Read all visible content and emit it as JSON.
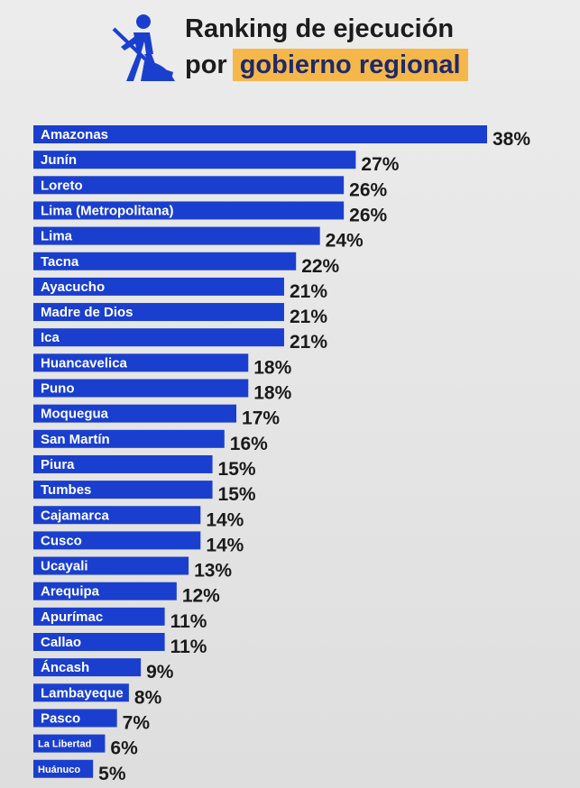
{
  "header": {
    "title_line1": "Ranking de ejecución",
    "title_line2_prefix": "por",
    "title_highlight": "gobierno regional",
    "icon": "construction-worker-icon"
  },
  "colors": {
    "bar": "#1a3fcf",
    "highlight": "#f6b74a",
    "icon": "#1a3fcf"
  },
  "chart_data": {
    "type": "bar",
    "orientation": "horizontal",
    "title": "Ranking de ejecución por gobierno regional",
    "categories": [
      "Amazonas",
      "Junín",
      "Loreto",
      "Lima (Metropolitana)",
      "Lima",
      "Tacna",
      "Ayacucho",
      "Madre de Dios",
      "Ica",
      "Huancavelica",
      "Puno",
      "Moquegua",
      "San Martín",
      "Piura",
      "Tumbes",
      "Cajamarca",
      "Cusco",
      "Ucayali",
      "Arequipa",
      "Apurímac",
      "Callao",
      "Áncash",
      "Lambayeque",
      "Pasco",
      "La Libertad",
      "Huánuco"
    ],
    "values": [
      38,
      27,
      26,
      26,
      24,
      22,
      21,
      21,
      21,
      18,
      18,
      17,
      16,
      15,
      15,
      14,
      14,
      13,
      12,
      11,
      11,
      9,
      8,
      7,
      6,
      5
    ],
    "value_labels": [
      "38%",
      "27%",
      "26%",
      "26%",
      "24%",
      "22%",
      "21%",
      "21%",
      "21%",
      "18%",
      "18%",
      "17%",
      "16%",
      "15%",
      "15%",
      "14%",
      "14%",
      "13%",
      "12%",
      "11%",
      "11%",
      "9%",
      "8%",
      "7%",
      "6%",
      "5%"
    ],
    "unit": "%",
    "xlim": [
      0,
      38
    ],
    "grid": false,
    "legend": "none"
  }
}
